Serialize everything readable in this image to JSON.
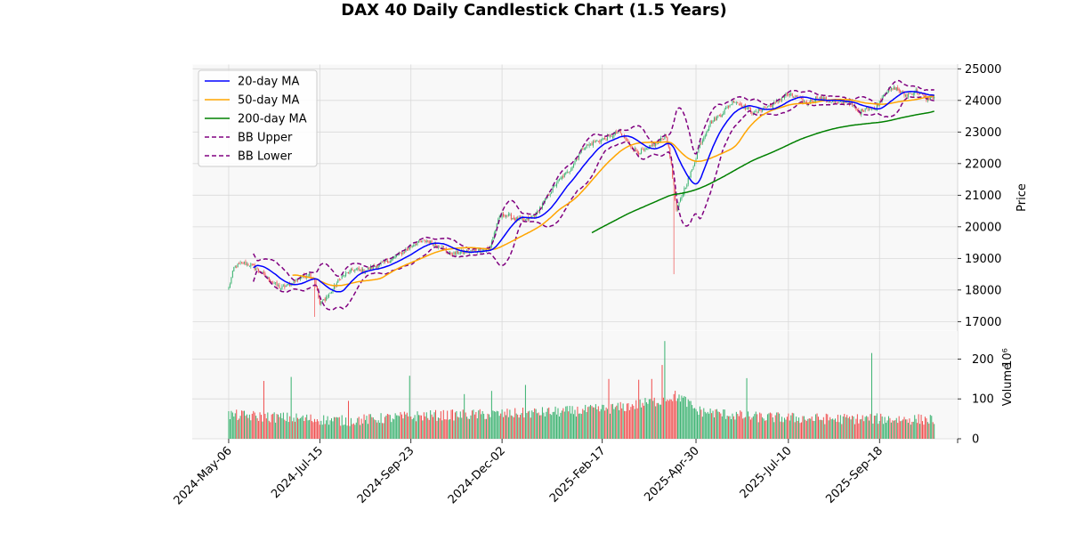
{
  "chart_data": {
    "type": "candlestick",
    "title": "DAX 40 Daily Candlestick Chart (1.5 Years)",
    "price_axis": {
      "label": "Price",
      "ylim": [
        16700,
        25150
      ],
      "ticks": [
        17000,
        18000,
        19000,
        20000,
        21000,
        22000,
        23000,
        24000,
        25000
      ],
      "tick_labels": [
        "17000",
        "18000",
        "19000",
        "20000",
        "21000",
        "22000",
        "23000",
        "24000",
        "25000"
      ],
      "position": "right"
    },
    "volume_axis": {
      "label": "Volume",
      "scale_label": "10⁶",
      "ylim": [
        0,
        270
      ],
      "ticks": [
        0,
        100,
        200
      ],
      "tick_labels": [
        "0",
        "100",
        "200"
      ],
      "position": "right"
    },
    "x_axis": {
      "tick_labels": [
        "2024-May-06",
        "2024-Jul-15",
        "2024-Sep-23",
        "2024-Dec-02",
        "2025-Feb-17",
        "2025-Apr-30",
        "2025-Jul-10",
        "2025-Sep-18"
      ],
      "tick_days": [
        0,
        70,
        140,
        210,
        287,
        359,
        430,
        500
      ],
      "range_days": [
        -28,
        560
      ]
    },
    "grid": true,
    "legend": {
      "placement": "upper left",
      "entries": [
        {
          "label": "20-day MA",
          "color": "#0000ff",
          "style": "solid"
        },
        {
          "label": "50-day MA",
          "color": "#ffa500",
          "style": "solid"
        },
        {
          "label": "200-day MA",
          "color": "#008000",
          "style": "solid"
        },
        {
          "label": "BB Upper",
          "color": "#800080",
          "style": "dashed"
        },
        {
          "label": "BB Lower",
          "color": "#800080",
          "style": "dashed"
        }
      ]
    },
    "up_color": "#3cb371",
    "down_color": "#f05050",
    "close_anchors": [
      [
        0,
        18050
      ],
      [
        4,
        18700
      ],
      [
        10,
        18850
      ],
      [
        17,
        18800
      ],
      [
        25,
        18550
      ],
      [
        32,
        18300
      ],
      [
        40,
        18050
      ],
      [
        48,
        18200
      ],
      [
        55,
        18400
      ],
      [
        62,
        18500
      ],
      [
        66,
        18350
      ],
      [
        70,
        17550
      ],
      [
        78,
        17900
      ],
      [
        86,
        18400
      ],
      [
        96,
        18650
      ],
      [
        104,
        18600
      ],
      [
        112,
        18750
      ],
      [
        122,
        18900
      ],
      [
        134,
        19200
      ],
      [
        142,
        19450
      ],
      [
        152,
        19550
      ],
      [
        162,
        19400
      ],
      [
        170,
        19150
      ],
      [
        180,
        19200
      ],
      [
        190,
        19250
      ],
      [
        200,
        19300
      ],
      [
        208,
        20300
      ],
      [
        212,
        20400
      ],
      [
        220,
        20250
      ],
      [
        228,
        20200
      ],
      [
        236,
        20400
      ],
      [
        244,
        20900
      ],
      [
        252,
        21400
      ],
      [
        262,
        21800
      ],
      [
        272,
        22500
      ],
      [
        282,
        22700
      ],
      [
        290,
        22800
      ],
      [
        300,
        23000
      ],
      [
        308,
        22600
      ],
      [
        314,
        22350
      ],
      [
        322,
        22450
      ],
      [
        330,
        22700
      ],
      [
        336,
        22900
      ],
      [
        340,
        22000
      ],
      [
        344,
        20500
      ],
      [
        350,
        21200
      ],
      [
        356,
        21800
      ],
      [
        362,
        22600
      ],
      [
        370,
        23300
      ],
      [
        378,
        23550
      ],
      [
        388,
        24000
      ],
      [
        396,
        23800
      ],
      [
        404,
        23600
      ],
      [
        410,
        23750
      ],
      [
        420,
        23900
      ],
      [
        428,
        24200
      ],
      [
        436,
        24100
      ],
      [
        444,
        23900
      ],
      [
        452,
        24100
      ],
      [
        460,
        24000
      ],
      [
        468,
        23900
      ],
      [
        476,
        24000
      ],
      [
        484,
        23600
      ],
      [
        490,
        23800
      ],
      [
        496,
        23700
      ],
      [
        504,
        24250
      ],
      [
        512,
        24400
      ],
      [
        520,
        24150
      ],
      [
        528,
        24300
      ],
      [
        536,
        24050
      ],
      [
        542,
        24100
      ]
    ],
    "volume_anchors": [
      [
        0,
        60
      ],
      [
        30,
        55
      ],
      [
        90,
        45
      ],
      [
        150,
        58
      ],
      [
        210,
        62
      ],
      [
        270,
        70
      ],
      [
        300,
        78
      ],
      [
        330,
        95
      ],
      [
        345,
        110
      ],
      [
        360,
        70
      ],
      [
        400,
        55
      ],
      [
        460,
        50
      ],
      [
        500,
        50
      ],
      [
        542,
        48
      ]
    ],
    "volume_spikes": [
      [
        27,
        145
      ],
      [
        48,
        155
      ],
      [
        92,
        95
      ],
      [
        139,
        158
      ],
      [
        181,
        112
      ],
      [
        202,
        120
      ],
      [
        228,
        135
      ],
      [
        292,
        150
      ],
      [
        315,
        148
      ],
      [
        325,
        150
      ],
      [
        333,
        185
      ],
      [
        335,
        245
      ],
      [
        344,
        95
      ],
      [
        398,
        152
      ],
      [
        494,
        215
      ]
    ],
    "ma200_start_day": 279
  }
}
